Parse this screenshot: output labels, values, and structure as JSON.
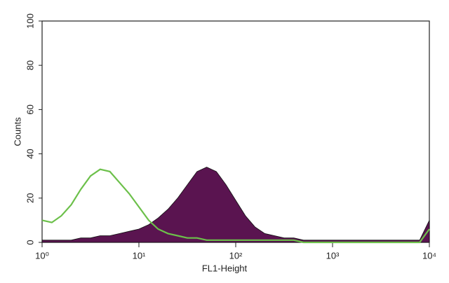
{
  "chart_data": {
    "type": "histogram-overlay",
    "xlabel": "FL1-Height",
    "ylabel": "Counts",
    "xscale": "log",
    "x": [
      1,
      1.26,
      1.58,
      2,
      2.51,
      3.16,
      3.98,
      5.01,
      6.31,
      7.94,
      10,
      12.6,
      15.8,
      20,
      25.1,
      31.6,
      39.8,
      50.1,
      63.1,
      79.4,
      100,
      126,
      158,
      200,
      251,
      316,
      398,
      501,
      631,
      794,
      1000,
      1260,
      1580,
      2000,
      2510,
      3160,
      3980,
      5010,
      6310,
      7940,
      10000
    ],
    "series": [
      {
        "color": "#5a1450",
        "fill": true,
        "values": [
          1,
          1,
          1,
          1,
          2,
          2,
          3,
          3,
          4,
          5,
          6,
          8,
          11,
          15,
          20,
          26,
          32,
          34,
          32,
          26,
          19,
          12,
          7,
          4,
          3,
          2,
          2,
          1,
          1,
          1,
          1,
          1,
          1,
          1,
          1,
          1,
          1,
          1,
          1,
          1,
          10
        ]
      },
      {
        "color": "#6cc04a",
        "fill": false,
        "values": [
          10,
          9,
          12,
          17,
          24,
          30,
          33,
          32,
          27,
          22,
          16,
          10,
          6,
          4,
          3,
          2,
          2,
          1,
          1,
          1,
          1,
          1,
          1,
          1,
          1,
          1,
          1,
          0,
          0,
          0,
          0,
          0,
          0,
          0,
          0,
          0,
          0,
          0,
          0,
          0,
          6
        ]
      }
    ],
    "xlim": [
      1,
      10000
    ],
    "xticks": [
      {
        "value": 1,
        "label": "10⁰"
      },
      {
        "value": 10,
        "label": "10¹"
      },
      {
        "value": 100,
        "label": "10²"
      },
      {
        "value": 1000,
        "label": "10³"
      },
      {
        "value": 10000,
        "label": "10⁴"
      }
    ],
    "ylim": [
      0,
      100
    ],
    "yticks": [
      0,
      20,
      40,
      60,
      80,
      100
    ]
  }
}
